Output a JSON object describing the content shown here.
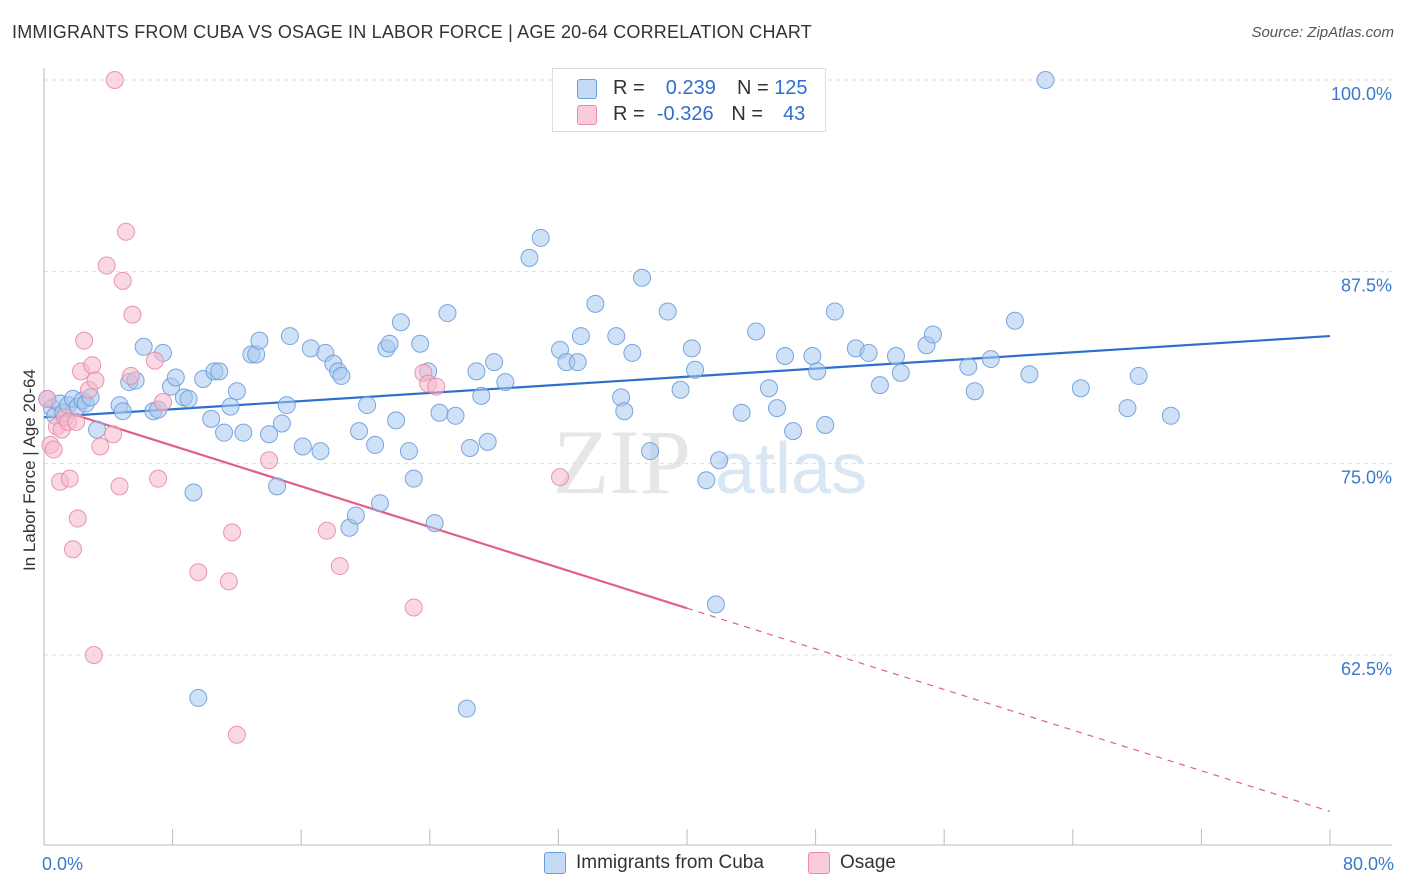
{
  "title": "IMMIGRANTS FROM CUBA VS OSAGE IN LABOR FORCE | AGE 20-64 CORRELATION CHART",
  "source": "Source: ZipAtlas.com",
  "watermark": {
    "zip": "ZIP",
    "atlas": "atlas"
  },
  "legend": {
    "rows": [
      {
        "r_label": "R =",
        "r_value": "0.239",
        "n_label": "N =",
        "n_value": "125"
      },
      {
        "r_label": "R =",
        "r_value": "-0.326",
        "n_label": "N =",
        "n_value": "43"
      }
    ]
  },
  "bottom_legend": [
    "Immigrants from Cuba",
    "Osage"
  ],
  "colors": {
    "blue_fill": "#a8c8ef",
    "blue_stroke": "#6a9ddc",
    "blue_line": "#2f6fcc",
    "pink_fill": "#f6b8cb",
    "pink_stroke": "#e88aa8",
    "pink_line": "#e0608c",
    "tick_label": "#3a78cc",
    "grid": "#dddddd"
  },
  "chart_data": {
    "type": "scatter",
    "title": "IMMIGRANTS FROM CUBA VS OSAGE IN LABOR FORCE | AGE 20-64 CORRELATION CHART",
    "xlabel": "",
    "ylabel": "In Labor Force | Age 20-64",
    "xlim": [
      0,
      80
    ],
    "ylim": [
      51,
      102
    ],
    "x_tick_labels": [
      "0.0%",
      "80.0%"
    ],
    "y_ticks": [
      62.5,
      75.0,
      87.5,
      100.0
    ],
    "y_tick_labels": [
      "62.5%",
      "75.0%",
      "87.5%",
      "100.0%"
    ],
    "grid": true,
    "series": [
      {
        "name": "Immigrants from Cuba",
        "r": 0.239,
        "n": 125,
        "trend": {
          "x": [
            0,
            80
          ],
          "y": [
            78.0,
            83.3
          ]
        },
        "points": [
          [
            0.2,
            79.2
          ],
          [
            0.5,
            78.6
          ],
          [
            0.7,
            78.1
          ],
          [
            1.0,
            78.9
          ],
          [
            1.2,
            78.3
          ],
          [
            1.5,
            78.8
          ],
          [
            1.8,
            79.2
          ],
          [
            2.1,
            78.7
          ],
          [
            2.4,
            79.1
          ],
          [
            2.6,
            78.9
          ],
          [
            2.9,
            79.3
          ],
          [
            3.3,
            77.2
          ],
          [
            4.7,
            78.8
          ],
          [
            4.9,
            78.4
          ],
          [
            5.3,
            80.3
          ],
          [
            5.7,
            80.4
          ],
          [
            6.2,
            82.6
          ],
          [
            6.8,
            78.4
          ],
          [
            7.1,
            78.5
          ],
          [
            7.4,
            82.2
          ],
          [
            7.9,
            80.0
          ],
          [
            8.2,
            80.6
          ],
          [
            8.7,
            79.3
          ],
          [
            9.0,
            79.2
          ],
          [
            9.3,
            73.1
          ],
          [
            9.6,
            59.7
          ],
          [
            9.9,
            80.5
          ],
          [
            10.4,
            77.9
          ],
          [
            10.6,
            81.0
          ],
          [
            10.9,
            81.0
          ],
          [
            11.2,
            77.0
          ],
          [
            11.6,
            78.7
          ],
          [
            12.0,
            79.7
          ],
          [
            12.4,
            77.0
          ],
          [
            12.9,
            82.1
          ],
          [
            13.2,
            82.1
          ],
          [
            13.4,
            83.0
          ],
          [
            14.0,
            76.9
          ],
          [
            14.5,
            73.5
          ],
          [
            14.8,
            77.6
          ],
          [
            15.1,
            78.8
          ],
          [
            15.3,
            83.3
          ],
          [
            16.1,
            76.1
          ],
          [
            16.6,
            82.5
          ],
          [
            17.2,
            75.8
          ],
          [
            17.5,
            82.2
          ],
          [
            18.0,
            81.5
          ],
          [
            18.3,
            81.0
          ],
          [
            18.5,
            80.7
          ],
          [
            19.0,
            70.8
          ],
          [
            19.4,
            71.6
          ],
          [
            19.6,
            77.1
          ],
          [
            20.1,
            78.8
          ],
          [
            20.6,
            76.2
          ],
          [
            20.9,
            72.4
          ],
          [
            21.3,
            82.5
          ],
          [
            21.5,
            82.8
          ],
          [
            21.9,
            77.8
          ],
          [
            22.2,
            84.2
          ],
          [
            22.7,
            75.8
          ],
          [
            23.0,
            74.0
          ],
          [
            23.4,
            82.8
          ],
          [
            23.9,
            81.0
          ],
          [
            24.3,
            71.1
          ],
          [
            24.6,
            78.3
          ],
          [
            25.1,
            84.8
          ],
          [
            25.6,
            78.1
          ],
          [
            26.3,
            59.0
          ],
          [
            26.5,
            76.0
          ],
          [
            26.9,
            81.0
          ],
          [
            27.2,
            79.4
          ],
          [
            27.6,
            76.4
          ],
          [
            28.0,
            81.6
          ],
          [
            28.7,
            80.3
          ],
          [
            30.2,
            88.4
          ],
          [
            30.9,
            89.7
          ],
          [
            32.1,
            82.4
          ],
          [
            32.5,
            81.6
          ],
          [
            33.2,
            81.6
          ],
          [
            33.4,
            83.3
          ],
          [
            34.3,
            85.4
          ],
          [
            35.6,
            83.3
          ],
          [
            35.9,
            79.3
          ],
          [
            36.1,
            78.4
          ],
          [
            36.6,
            82.2
          ],
          [
            37.2,
            87.1
          ],
          [
            37.7,
            75.8
          ],
          [
            38.8,
            84.9
          ],
          [
            39.6,
            79.8
          ],
          [
            40.3,
            82.5
          ],
          [
            40.5,
            81.1
          ],
          [
            41.2,
            73.9
          ],
          [
            41.8,
            65.8
          ],
          [
            42.0,
            75.2
          ],
          [
            43.4,
            78.3
          ],
          [
            44.3,
            83.6
          ],
          [
            45.1,
            79.9
          ],
          [
            45.6,
            78.6
          ],
          [
            46.1,
            82.0
          ],
          [
            46.6,
            77.1
          ],
          [
            47.8,
            82.0
          ],
          [
            48.1,
            81.0
          ],
          [
            48.6,
            77.5
          ],
          [
            49.2,
            84.9
          ],
          [
            50.5,
            82.5
          ],
          [
            51.3,
            82.2
          ],
          [
            52.0,
            80.1
          ],
          [
            53.0,
            82.0
          ],
          [
            53.3,
            80.9
          ],
          [
            54.9,
            82.7
          ],
          [
            55.3,
            83.4
          ],
          [
            57.5,
            81.3
          ],
          [
            57.9,
            79.7
          ],
          [
            58.9,
            81.8
          ],
          [
            60.4,
            84.3
          ],
          [
            61.3,
            80.8
          ],
          [
            62.3,
            100.0
          ],
          [
            64.5,
            79.9
          ],
          [
            67.4,
            78.6
          ],
          [
            68.1,
            80.7
          ],
          [
            70.1,
            78.1
          ]
        ]
      },
      {
        "name": "Osage",
        "r": -0.326,
        "n": 43,
        "trend": {
          "x": [
            0,
            80
          ],
          "y": [
            78.8,
            52.3
          ]
        },
        "trend_solid_until_x": 40,
        "points": [
          [
            0.2,
            79.2
          ],
          [
            0.4,
            76.2
          ],
          [
            0.6,
            75.9
          ],
          [
            0.8,
            77.4
          ],
          [
            1.0,
            73.8
          ],
          [
            1.1,
            77.2
          ],
          [
            1.3,
            78.0
          ],
          [
            1.5,
            77.7
          ],
          [
            1.6,
            74.0
          ],
          [
            1.8,
            69.4
          ],
          [
            2.0,
            77.7
          ],
          [
            2.1,
            71.4
          ],
          [
            2.3,
            81.0
          ],
          [
            2.5,
            83.0
          ],
          [
            2.8,
            79.8
          ],
          [
            3.0,
            81.4
          ],
          [
            3.1,
            62.5
          ],
          [
            3.2,
            80.4
          ],
          [
            3.5,
            76.1
          ],
          [
            3.9,
            87.9
          ],
          [
            4.3,
            76.9
          ],
          [
            4.4,
            100.0
          ],
          [
            4.7,
            73.5
          ],
          [
            4.9,
            86.9
          ],
          [
            5.1,
            90.1
          ],
          [
            5.4,
            80.7
          ],
          [
            5.5,
            84.7
          ],
          [
            6.9,
            81.7
          ],
          [
            7.1,
            74.0
          ],
          [
            7.4,
            79.0
          ],
          [
            9.6,
            67.9
          ],
          [
            11.5,
            67.3
          ],
          [
            11.7,
            70.5
          ],
          [
            12.0,
            57.3
          ],
          [
            14.0,
            75.2
          ],
          [
            17.6,
            70.6
          ],
          [
            18.4,
            68.3
          ],
          [
            23.0,
            65.6
          ],
          [
            23.6,
            80.9
          ],
          [
            23.9,
            80.2
          ],
          [
            24.4,
            80.0
          ],
          [
            32.1,
            74.1
          ]
        ]
      }
    ]
  }
}
